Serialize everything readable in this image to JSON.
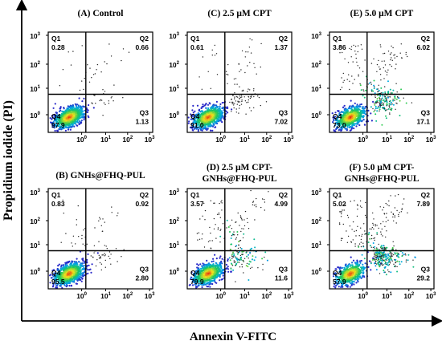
{
  "figure": {
    "ylabel": "Propidium iodide (PI)",
    "xlabel": "Annexin V-FITC"
  },
  "chart_data": [
    {
      "type": "scatter",
      "title": "(A) Control",
      "quadrants": [
        {
          "name": "Q1",
          "value": "0.28"
        },
        {
          "name": "Q2",
          "value": "0.66"
        },
        {
          "name": "Q3",
          "value": "1.13"
        },
        {
          "name": "Q4",
          "value": "97.9"
        }
      ],
      "xticks": [
        "0",
        "1",
        "2",
        "3"
      ],
      "yticks": [
        "0",
        "1",
        "2",
        "3"
      ]
    },
    {
      "type": "scatter",
      "title": "(C) 2.5 μM CPT",
      "quadrants": [
        {
          "name": "Q1",
          "value": "0.61"
        },
        {
          "name": "Q2",
          "value": "1.37"
        },
        {
          "name": "Q3",
          "value": "7.02"
        },
        {
          "name": "Q4",
          "value": "91.0"
        }
      ],
      "xticks": [
        "0",
        "1",
        "2",
        "3"
      ],
      "yticks": [
        "0",
        "1",
        "2",
        "3"
      ]
    },
    {
      "type": "scatter",
      "title": "(E) 5.0 μM CPT",
      "quadrants": [
        {
          "name": "Q1",
          "value": "3.86"
        },
        {
          "name": "Q2",
          "value": "6.02"
        },
        {
          "name": "Q3",
          "value": "17.1"
        },
        {
          "name": "Q4",
          "value": "73.0"
        }
      ],
      "xticks": [
        "0",
        "1",
        "2",
        "3"
      ],
      "yticks": [
        "0",
        "1",
        "2",
        "3"
      ]
    },
    {
      "type": "scatter",
      "title": "(B) GNHs@FHQ-PUL",
      "quadrants": [
        {
          "name": "Q1",
          "value": "0.83"
        },
        {
          "name": "Q2",
          "value": "0.92"
        },
        {
          "name": "Q3",
          "value": "2.80"
        },
        {
          "name": "Q4",
          "value": "95.5"
        }
      ],
      "xticks": [
        "0",
        "1",
        "2",
        "3"
      ],
      "yticks": [
        "0",
        "1",
        "2",
        "3"
      ]
    },
    {
      "type": "scatter",
      "title": "(D) 2.5 μM CPT-",
      "title2": "GNHs@FHQ-PUL",
      "quadrants": [
        {
          "name": "Q1",
          "value": "3.57"
        },
        {
          "name": "Q2",
          "value": "4.99"
        },
        {
          "name": "Q3",
          "value": "11.6"
        },
        {
          "name": "Q4",
          "value": "79.9"
        }
      ],
      "xticks": [
        "0",
        "1",
        "2",
        "3"
      ],
      "yticks": [
        "0",
        "1",
        "2",
        "3"
      ]
    },
    {
      "type": "scatter",
      "title": "(F) 5.0 μM CPT-",
      "title2": "GNHs@FHQ-PUL",
      "quadrants": [
        {
          "name": "Q1",
          "value": "5.02"
        },
        {
          "name": "Q2",
          "value": "7.89"
        },
        {
          "name": "Q3",
          "value": "29.2"
        },
        {
          "name": "Q4",
          "value": "57.9"
        }
      ],
      "xticks": [
        "0",
        "1",
        "2",
        "3"
      ],
      "yticks": [
        "0",
        "1",
        "2",
        "3"
      ]
    }
  ]
}
